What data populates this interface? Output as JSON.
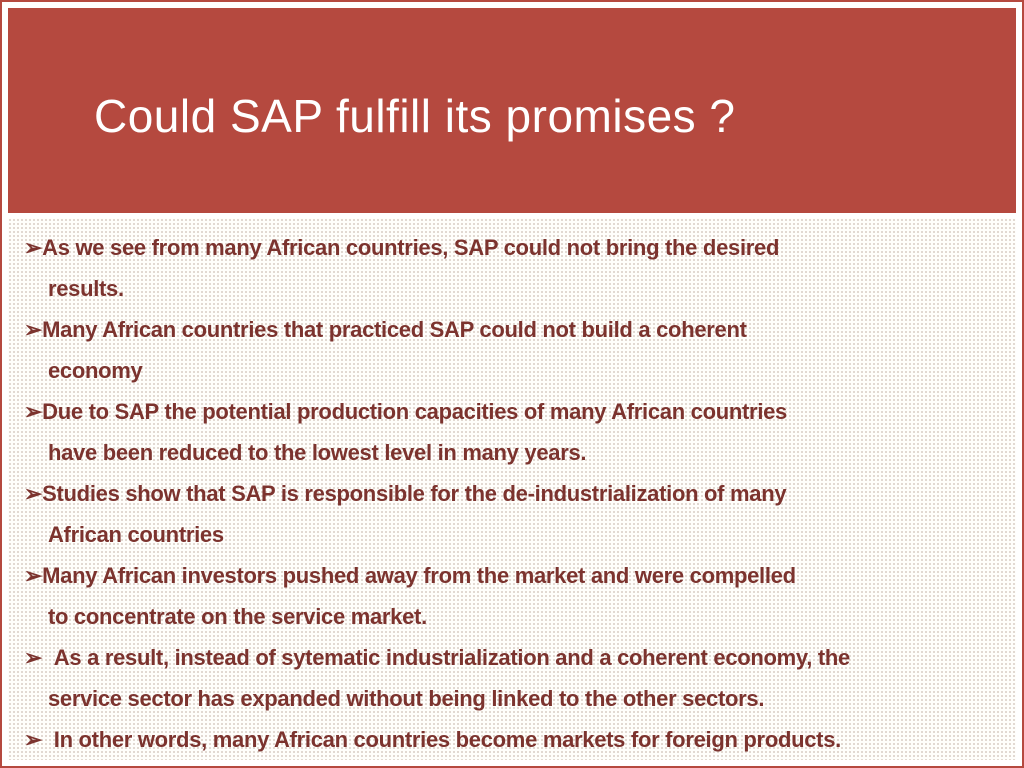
{
  "slide": {
    "title": "Could SAP fulfill its promises ?",
    "bullets": [
      {
        "marker": "➢",
        "text": "As we see from many African countries, SAP could not bring the desired\n results."
      },
      {
        "marker": "➢",
        "text": "Many African countries that practiced SAP could not build a coherent\n economy"
      },
      {
        "marker": "➢",
        "text": "Due to SAP the potential production capacities of many African countries\n have been reduced to the lowest level in many years."
      },
      {
        "marker": "➢",
        "text": "Studies show that SAP is responsible for the de-industrialization of many\n African countries"
      },
      {
        "marker": "➢",
        "text": "Many African investors pushed away from the market and were compelled\n to concentrate on the service market."
      },
      {
        "marker": "➢",
        "text": "  As a result, instead of sytematic industrialization and a coherent economy, the\n service sector has expanded without being linked to the other sectors."
      },
      {
        "marker": "➢",
        "text": "  In other words, many African countries become markets for foreign products."
      }
    ]
  },
  "colors": {
    "header_bg": "#b5493f",
    "border": "#b5493f",
    "title_text": "#ffffff",
    "body_text": "#7c332e"
  }
}
